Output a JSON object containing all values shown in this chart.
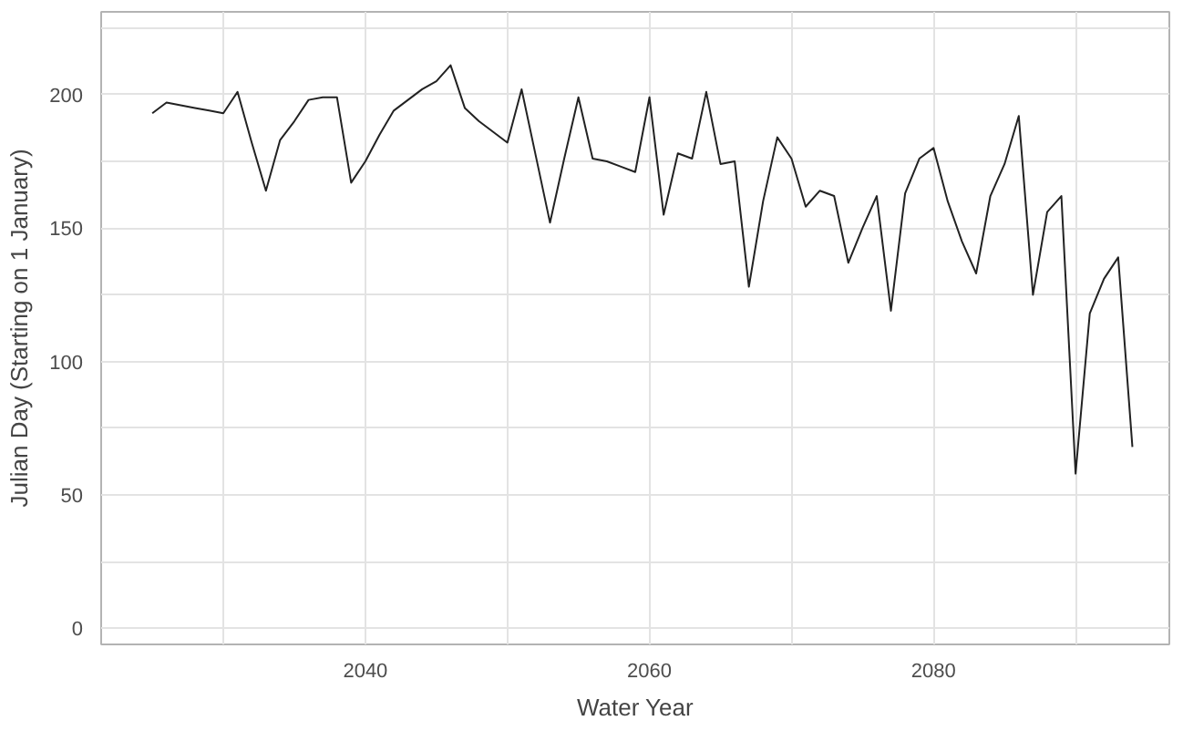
{
  "chart_data": {
    "type": "line",
    "xlabel": "Water Year",
    "ylabel": "Julian Day (Starting on 1 January)",
    "x": [
      2025,
      2026,
      2027,
      2028,
      2029,
      2030,
      2031,
      2032,
      2033,
      2034,
      2035,
      2036,
      2037,
      2038,
      2039,
      2040,
      2041,
      2042,
      2043,
      2044,
      2045,
      2046,
      2047,
      2048,
      2049,
      2050,
      2051,
      2052,
      2053,
      2054,
      2055,
      2056,
      2057,
      2058,
      2059,
      2060,
      2061,
      2062,
      2063,
      2064,
      2065,
      2066,
      2067,
      2068,
      2069,
      2070,
      2071,
      2072,
      2073,
      2074,
      2075,
      2076,
      2077,
      2078,
      2079,
      2080,
      2081,
      2082,
      2083,
      2084,
      2085,
      2086,
      2087,
      2088,
      2089,
      2090,
      2091,
      2092,
      2093,
      2094
    ],
    "series": [
      {
        "color": "#222222",
        "values": [
          193,
          197,
          196,
          195,
          194,
          193,
          201,
          182,
          164,
          183,
          190,
          198,
          199,
          199,
          167,
          175,
          185,
          194,
          198,
          202,
          205,
          211,
          195,
          190,
          186,
          182,
          202,
          177,
          152,
          176,
          199,
          176,
          175,
          173,
          171,
          199,
          155,
          178,
          176,
          201,
          174,
          175,
          128,
          160,
          184,
          176,
          158,
          164,
          162,
          137,
          150,
          162,
          119,
          163,
          176,
          180,
          160,
          145,
          133,
          162,
          174,
          192,
          125,
          156,
          162,
          58,
          118,
          131,
          139,
          68
        ]
      }
    ],
    "xlim": [
      2021.4,
      2096.6
    ],
    "ylim": [
      -6,
      231
    ],
    "xticks": [
      {
        "value": 2030,
        "label": null
      },
      2040,
      {
        "value": 2050,
        "label": null
      },
      2060,
      {
        "value": 2070,
        "label": null
      },
      2080,
      {
        "value": 2090,
        "label": null
      }
    ],
    "yticks": [
      0,
      {
        "value": 25,
        "label": null
      },
      50,
      {
        "value": 75,
        "label": null
      },
      100,
      {
        "value": 125,
        "label": null
      },
      150,
      {
        "value": 175,
        "label": null
      },
      200,
      {
        "value": 225,
        "label": null
      }
    ],
    "grid": true,
    "marker": "none",
    "line_style": "solid"
  }
}
